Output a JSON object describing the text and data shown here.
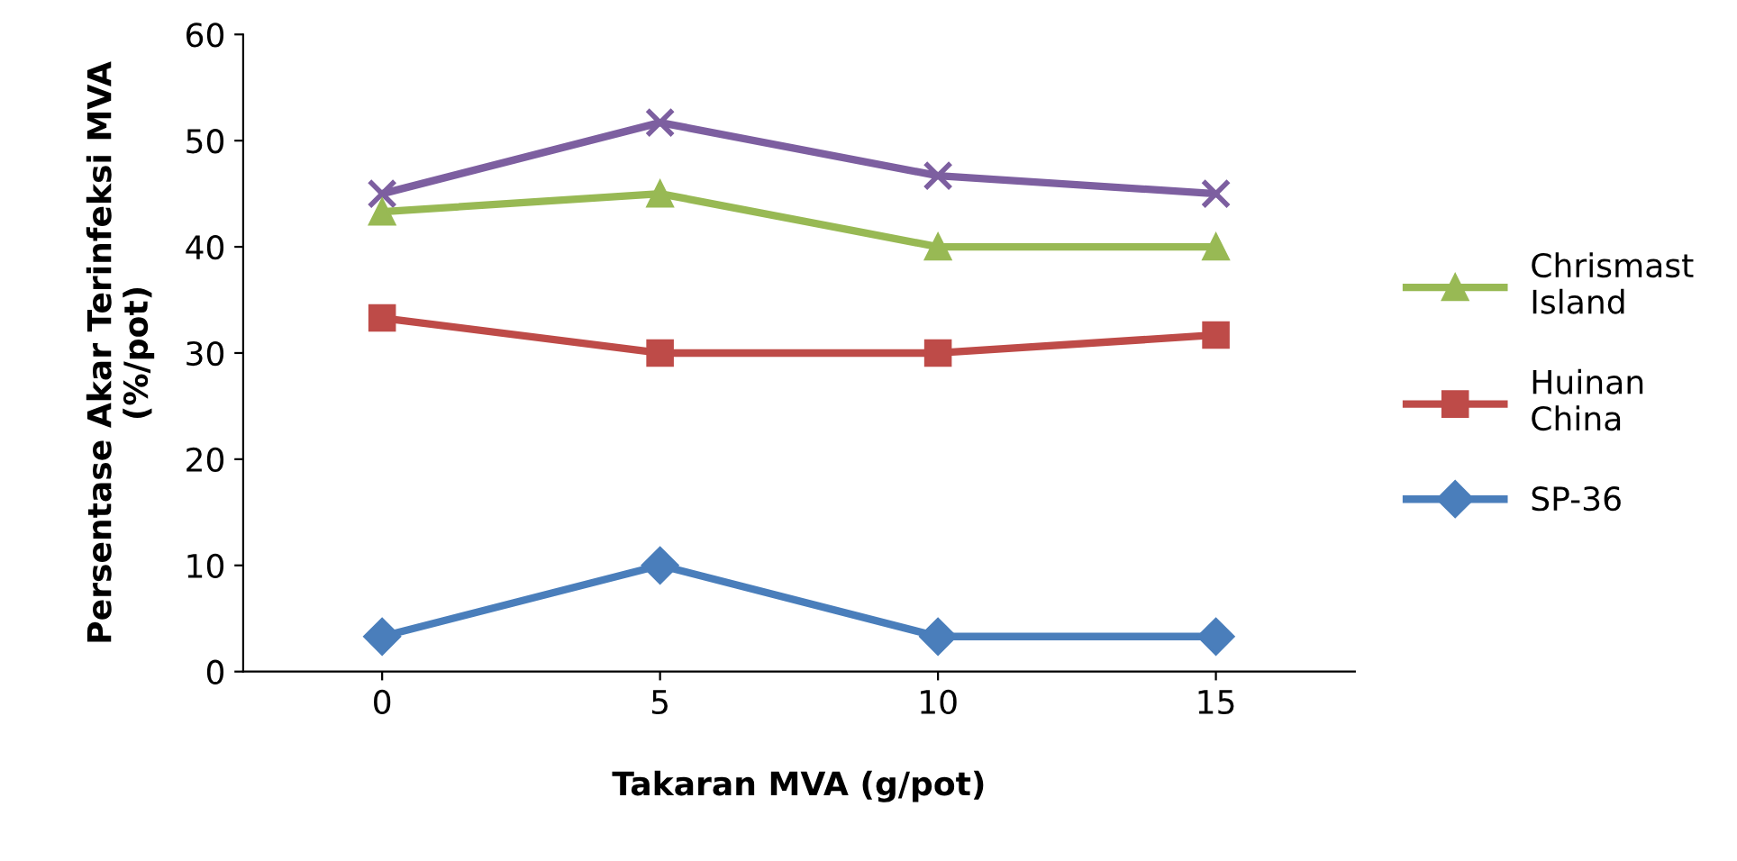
{
  "chart_data": {
    "type": "line",
    "xlabel": "Takaran MVA (g/pot)",
    "ylabel": "Persentase Akar Terinfeksi MVA\n(%/pot)",
    "categories": [
      "0",
      "5",
      "10",
      "15"
    ],
    "series": [
      {
        "color": "#7d5fa0",
        "marker": "cross",
        "values": [
          45,
          51.7,
          46.7,
          45
        ]
      },
      {
        "name": "Chrismast Island",
        "color": "#98b954",
        "marker": "triangle",
        "values": [
          43.3,
          45,
          40,
          40
        ]
      },
      {
        "name": "Huinan China",
        "color": "#be4b48",
        "marker": "square",
        "values": [
          33.3,
          30,
          30,
          31.7
        ]
      },
      {
        "name": "SP-36",
        "color": "#4a7ebb",
        "marker": "diamond",
        "values": [
          3.3,
          10,
          3.3,
          3.3
        ]
      }
    ],
    "ylim": [
      0,
      60
    ],
    "yticks": [
      0,
      10,
      20,
      30,
      40,
      50,
      60
    ],
    "grid": false,
    "legend": "right",
    "line_style": "solid"
  }
}
